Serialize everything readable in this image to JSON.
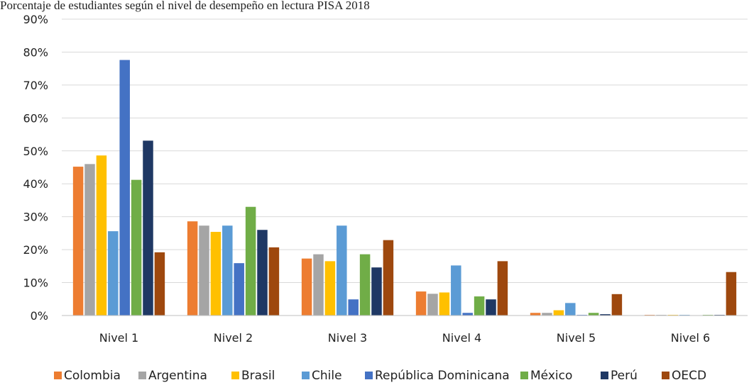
{
  "chart_data": {
    "type": "bar",
    "title": "Porcentaje de estudiantes según el nivel de desempeño en lectura PISA 2018",
    "xlabel": "",
    "ylabel": "",
    "ylim": [
      0,
      90
    ],
    "y_ticks": [
      "0%",
      "10%",
      "20%",
      "30%",
      "40%",
      "50%",
      "60%",
      "70%",
      "80%",
      "90%"
    ],
    "grid": true,
    "legend_position": "bottom",
    "categories": [
      "Nivel 1",
      "Nivel 2",
      "Nivel 3",
      "Nivel 4",
      "Nivel 5",
      "Nivel 6"
    ],
    "series": [
      {
        "name": "Colombia",
        "color": "#ed7d31",
        "values": [
          45.2,
          28.6,
          17.3,
          7.3,
          0.8,
          0.2
        ]
      },
      {
        "name": "Argentina",
        "color": "#a5a5a5",
        "values": [
          46.0,
          27.3,
          18.6,
          6.6,
          0.8,
          0.2
        ]
      },
      {
        "name": "Brasil",
        "color": "#ffc000",
        "values": [
          48.6,
          25.4,
          16.5,
          7.0,
          1.6,
          0.2
        ]
      },
      {
        "name": "Chile",
        "color": "#5b9bd5",
        "values": [
          25.6,
          27.3,
          27.3,
          15.2,
          3.8,
          0.2
        ]
      },
      {
        "name": "República Dominicana",
        "color": "#4472c4",
        "values": [
          77.6,
          15.9,
          4.9,
          0.8,
          0.2,
          0.0
        ]
      },
      {
        "name": "México",
        "color": "#70ad47",
        "values": [
          41.2,
          33.0,
          18.6,
          5.8,
          0.8,
          0.2
        ]
      },
      {
        "name": "Perú",
        "color": "#1f3864",
        "values": [
          53.1,
          26.0,
          14.6,
          4.9,
          0.4,
          0.2
        ]
      },
      {
        "name": "OECD",
        "color": "#9e480e",
        "values": [
          19.2,
          20.7,
          22.9,
          16.5,
          6.5,
          13.2
        ]
      }
    ]
  }
}
